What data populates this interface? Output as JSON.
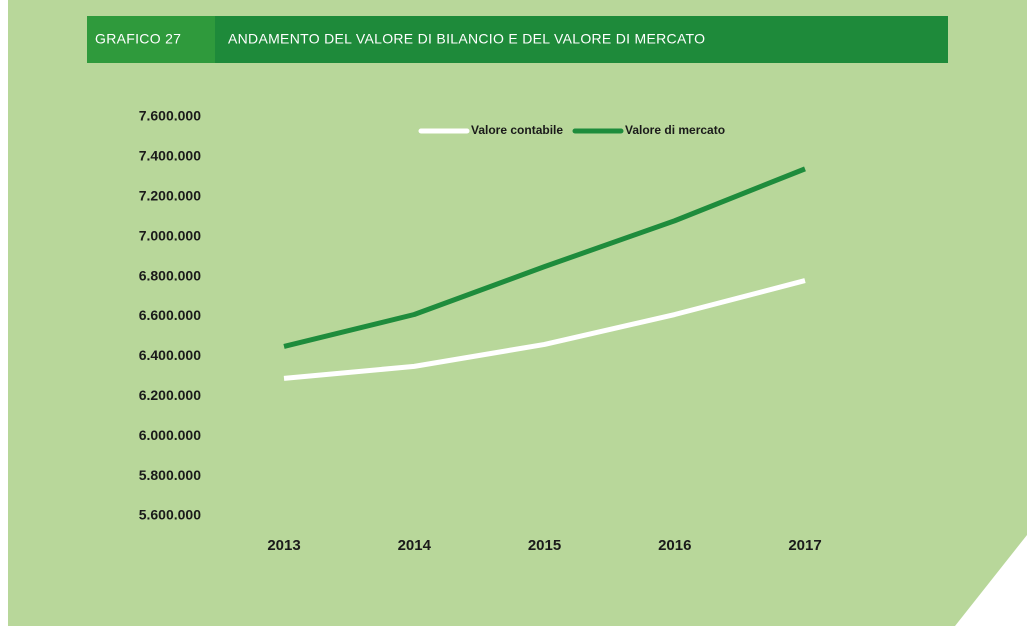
{
  "chart_data": {
    "type": "line",
    "figure_label": "GRAFICO 27",
    "title": "ANDAMENTO DEL VALORE DI BILANCIO E DEL VALORE DI MERCATO",
    "categories": [
      "2013",
      "2014",
      "2015",
      "2016",
      "2017"
    ],
    "series": [
      {
        "name": "Valore contabile",
        "color": "#ffffff",
        "values": [
          6290000,
          6350000,
          6460000,
          6610000,
          6780000
        ]
      },
      {
        "name": "Valore di mercato",
        "color": "#1e8c3c",
        "values": [
          6450000,
          6610000,
          6850000,
          7080000,
          7340000
        ]
      }
    ],
    "ylim": [
      5600000,
      7600000
    ],
    "yticks": [
      {
        "value": 5600000,
        "label": "5.600.000"
      },
      {
        "value": 5800000,
        "label": "5.800.000"
      },
      {
        "value": 6000000,
        "label": "6.000.000"
      },
      {
        "value": 6200000,
        "label": "6.200.000"
      },
      {
        "value": 6400000,
        "label": "6.400.000"
      },
      {
        "value": 6600000,
        "label": "6.600.000"
      },
      {
        "value": 6800000,
        "label": "6.800.000"
      },
      {
        "value": 7000000,
        "label": "7.000.000"
      },
      {
        "value": 7200000,
        "label": "7.200.000"
      },
      {
        "value": 7400000,
        "label": "7.400.000"
      },
      {
        "value": 7600000,
        "label": "7.600.000"
      }
    ],
    "grid": false,
    "legend": "top"
  }
}
